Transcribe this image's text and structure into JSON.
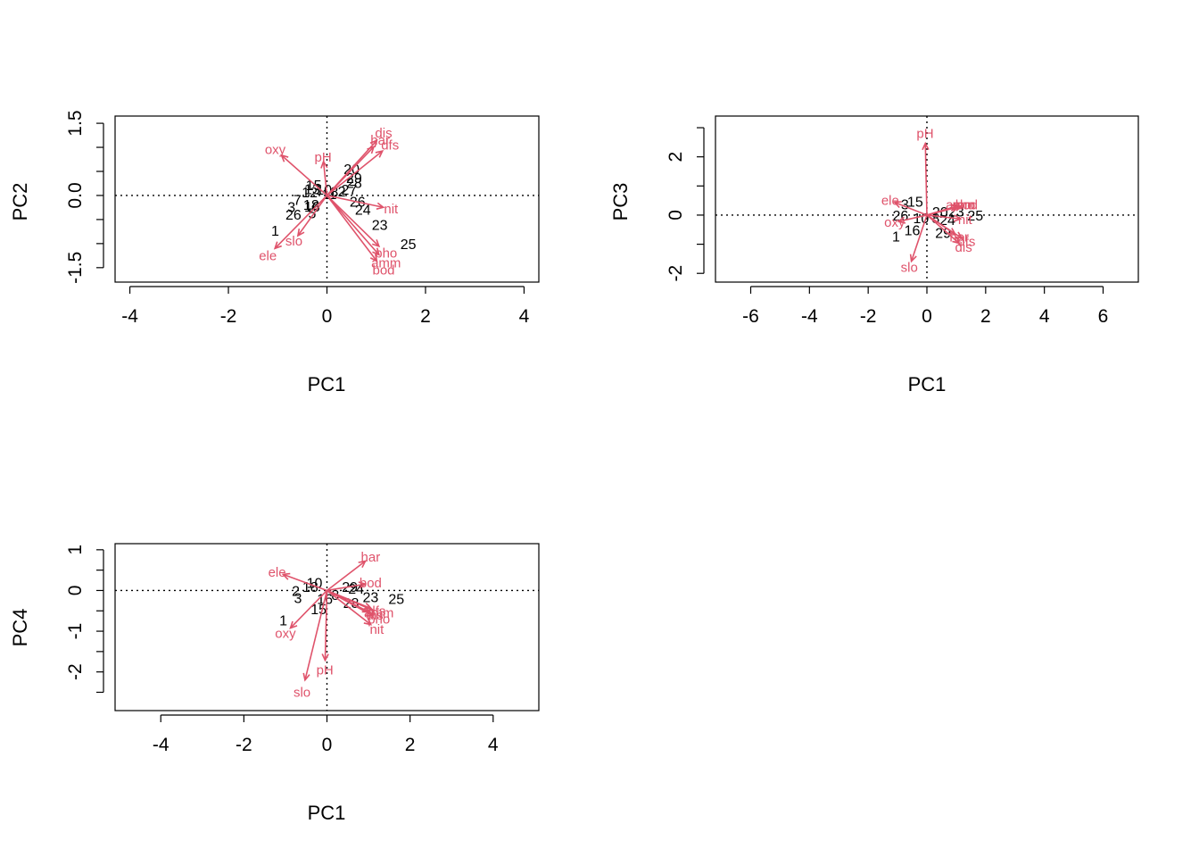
{
  "chart_data": [
    {
      "type": "scatter",
      "subtype": "biplot",
      "xlabel": "PC1",
      "ylabel": "PC2",
      "xlim": [
        -4.3,
        4.3
      ],
      "ylim": [
        -1.8,
        1.65
      ],
      "xticks": [
        -4,
        -2,
        0,
        2,
        4
      ],
      "yticks": [
        -1.5,
        0.0,
        1.5
      ],
      "yticks_minor": [
        -1.0,
        -0.5,
        0.5,
        1.0
      ],
      "ytick_labels": [
        "-1.5",
        "0.0",
        "1.5"
      ],
      "reference_lines": {
        "x": 0,
        "y": 0,
        "style": "dotted"
      },
      "observations": [
        {
          "label": "1",
          "x": -1.05,
          "y": -0.72
        },
        {
          "label": "26",
          "x": -0.68,
          "y": -0.39
        },
        {
          "label": "3",
          "x": -0.72,
          "y": -0.23
        },
        {
          "label": "7",
          "x": -0.6,
          "y": -0.08
        },
        {
          "label": "5",
          "x": -0.3,
          "y": -0.36
        },
        {
          "label": "18",
          "x": -0.32,
          "y": -0.19
        },
        {
          "label": "16",
          "x": -0.3,
          "y": -0.22
        },
        {
          "label": "15",
          "x": -0.27,
          "y": 0.22
        },
        {
          "label": "13",
          "x": -0.3,
          "y": 0.14
        },
        {
          "label": "12",
          "x": -0.35,
          "y": 0.07
        },
        {
          "label": "10",
          "x": -0.06,
          "y": 0.13
        },
        {
          "label": "11",
          "x": 0.05,
          "y": 0.04
        },
        {
          "label": "8",
          "x": 0.15,
          "y": 0.08
        },
        {
          "label": "2",
          "x": 0.3,
          "y": 0.09
        },
        {
          "label": "20",
          "x": 0.5,
          "y": 0.56
        },
        {
          "label": "29",
          "x": 0.55,
          "y": 0.37
        },
        {
          "label": "28",
          "x": 0.55,
          "y": 0.27
        },
        {
          "label": "27",
          "x": 0.45,
          "y": 0.13
        },
        {
          "label": "26",
          "x": 0.62,
          "y": -0.12
        },
        {
          "label": "24",
          "x": 0.73,
          "y": -0.29
        },
        {
          "label": "23",
          "x": 1.07,
          "y": -0.6
        },
        {
          "label": "25",
          "x": 1.65,
          "y": -1.0
        }
      ],
      "variables": [
        {
          "label": "oxy",
          "x": -1.05,
          "y": 0.95
        },
        {
          "label": "pH",
          "x": -0.08,
          "y": 0.8
        },
        {
          "label": "dis",
          "x": 1.15,
          "y": 1.3
        },
        {
          "label": "har",
          "x": 1.08,
          "y": 1.15
        },
        {
          "label": "dfs",
          "x": 1.28,
          "y": 1.05
        },
        {
          "label": "nit",
          "x": 1.3,
          "y": -0.28
        },
        {
          "label": "pho",
          "x": 1.2,
          "y": -1.2
        },
        {
          "label": "amm",
          "x": 1.2,
          "y": -1.4
        },
        {
          "label": "bod",
          "x": 1.15,
          "y": -1.55
        },
        {
          "label": "slo",
          "x": -0.67,
          "y": -0.95
        },
        {
          "label": "ele",
          "x": -1.2,
          "y": -1.25
        }
      ]
    },
    {
      "type": "scatter",
      "subtype": "biplot",
      "xlabel": "PC1",
      "ylabel": "PC3",
      "xlim": [
        -7.2,
        7.2
      ],
      "ylim": [
        -2.3,
        3.4
      ],
      "xticks": [
        -6,
        -4,
        -2,
        0,
        2,
        4,
        6
      ],
      "yticks": [
        -2,
        0,
        2
      ],
      "yticks_minor": [
        -1,
        1,
        3
      ],
      "ytick_labels": [
        "-2",
        "0",
        "2"
      ],
      "reference_lines": {
        "x": 0,
        "y": 0,
        "style": "dotted"
      },
      "observations": [
        {
          "label": "1",
          "x": -1.05,
          "y": -0.72
        },
        {
          "label": "3",
          "x": -0.75,
          "y": 0.38
        },
        {
          "label": "15",
          "x": -0.4,
          "y": 0.47
        },
        {
          "label": "26",
          "x": -0.9,
          "y": 0.0
        },
        {
          "label": "16",
          "x": -0.5,
          "y": -0.5
        },
        {
          "label": "10",
          "x": -0.2,
          "y": -0.1
        },
        {
          "label": "8",
          "x": 0.3,
          "y": -0.1
        },
        {
          "label": "20",
          "x": 0.45,
          "y": 0.12
        },
        {
          "label": "29",
          "x": 0.55,
          "y": -0.6
        },
        {
          "label": "23",
          "x": 1.0,
          "y": 0.14
        },
        {
          "label": "24",
          "x": 0.7,
          "y": -0.15
        },
        {
          "label": "25",
          "x": 1.65,
          "y": 0.0
        }
      ],
      "variables": [
        {
          "label": "pH",
          "x": -0.06,
          "y": 2.8
        },
        {
          "label": "ele",
          "x": -1.25,
          "y": 0.5
        },
        {
          "label": "oxy",
          "x": -1.1,
          "y": -0.25
        },
        {
          "label": "slo",
          "x": -0.6,
          "y": -1.8
        },
        {
          "label": "amm",
          "x": 1.15,
          "y": 0.35
        },
        {
          "label": "pho",
          "x": 1.25,
          "y": 0.35
        },
        {
          "label": "bod",
          "x": 1.35,
          "y": 0.35
        },
        {
          "label": "nit",
          "x": 1.3,
          "y": -0.15
        },
        {
          "label": "har",
          "x": 1.1,
          "y": -0.75
        },
        {
          "label": "dfs",
          "x": 1.35,
          "y": -0.9
        },
        {
          "label": "dis",
          "x": 1.25,
          "y": -1.1
        }
      ]
    },
    {
      "type": "scatter",
      "subtype": "biplot",
      "xlabel": "PC1",
      "ylabel": "PC4",
      "xlim": [
        -5.1,
        5.1
      ],
      "ylim": [
        -2.95,
        1.15
      ],
      "xticks": [
        -4,
        -2,
        0,
        2,
        4
      ],
      "yticks": [
        -2,
        -1,
        0,
        1
      ],
      "yticks_minor": [
        -2.5,
        -1.5,
        -0.5,
        0.5
      ],
      "ytick_labels": [
        "-2",
        "-1",
        "0",
        "1"
      ],
      "reference_lines": {
        "x": 0,
        "y": 0,
        "style": "dotted"
      },
      "observations": [
        {
          "label": "1",
          "x": -1.05,
          "y": -0.72
        },
        {
          "label": "3",
          "x": -0.7,
          "y": -0.18
        },
        {
          "label": "2",
          "x": -0.75,
          "y": 0.0
        },
        {
          "label": "18",
          "x": -0.4,
          "y": 0.1
        },
        {
          "label": "10",
          "x": -0.3,
          "y": 0.2
        },
        {
          "label": "15",
          "x": -0.2,
          "y": -0.45
        },
        {
          "label": "16",
          "x": -0.05,
          "y": -0.2
        },
        {
          "label": "8",
          "x": 0.2,
          "y": -0.1
        },
        {
          "label": "29",
          "x": 0.55,
          "y": 0.1
        },
        {
          "label": "28",
          "x": 0.58,
          "y": -0.3
        },
        {
          "label": "24",
          "x": 0.7,
          "y": 0.05
        },
        {
          "label": "23",
          "x": 1.05,
          "y": -0.15
        },
        {
          "label": "25",
          "x": 1.67,
          "y": -0.2
        }
      ],
      "variables": [
        {
          "label": "har",
          "x": 1.05,
          "y": 0.82
        },
        {
          "label": "ele",
          "x": -1.2,
          "y": 0.45
        },
        {
          "label": "bod",
          "x": 1.05,
          "y": 0.18
        },
        {
          "label": "dfs",
          "x": 1.2,
          "y": -0.5
        },
        {
          "label": "dis",
          "x": 1.15,
          "y": -0.6
        },
        {
          "label": "amm",
          "x": 1.25,
          "y": -0.55
        },
        {
          "label": "pho",
          "x": 1.25,
          "y": -0.7
        },
        {
          "label": "nit",
          "x": 1.2,
          "y": -0.95
        },
        {
          "label": "oxy",
          "x": -1.0,
          "y": -1.05
        },
        {
          "label": "pH",
          "x": -0.05,
          "y": -1.95
        },
        {
          "label": "slo",
          "x": -0.6,
          "y": -2.5
        }
      ]
    }
  ]
}
